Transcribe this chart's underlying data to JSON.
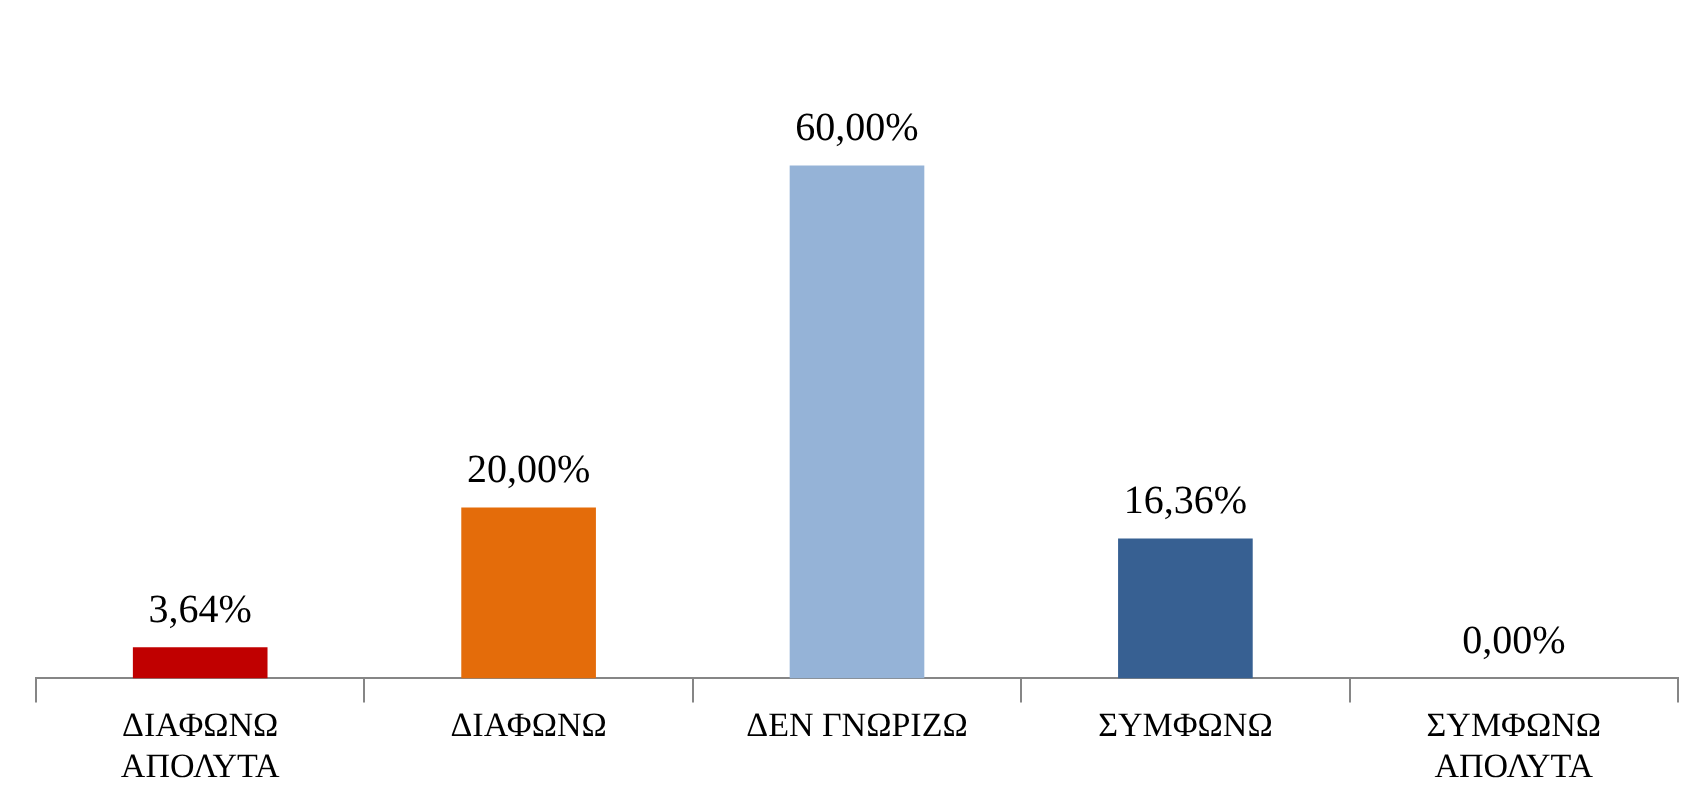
{
  "chart_data": {
    "type": "bar",
    "relative": false,
    "categories": [
      "ΔΙΑΦΩΝΩ ΑΠΟΛΥΤΑ",
      "ΔΙΑΦΩΝΩ",
      "ΔΕΝ ΓΝΩΡΙΖΩ",
      "ΣΥΜΦΩΝΩ",
      "ΣΥΜΦΩΝΩ ΑΠΟΛΥΤΑ"
    ],
    "values": [
      3.64,
      20,
      60,
      16.36,
      0
    ],
    "colors": [
      "#c00000",
      "#e46c0a",
      "#95b3d7",
      "#376092",
      "#376092"
    ],
    "value_labels": [
      "3,64%",
      "20,00%",
      "60,00%",
      "16,36%",
      "0,00%"
    ],
    "grid": false,
    "legend": false
  }
}
